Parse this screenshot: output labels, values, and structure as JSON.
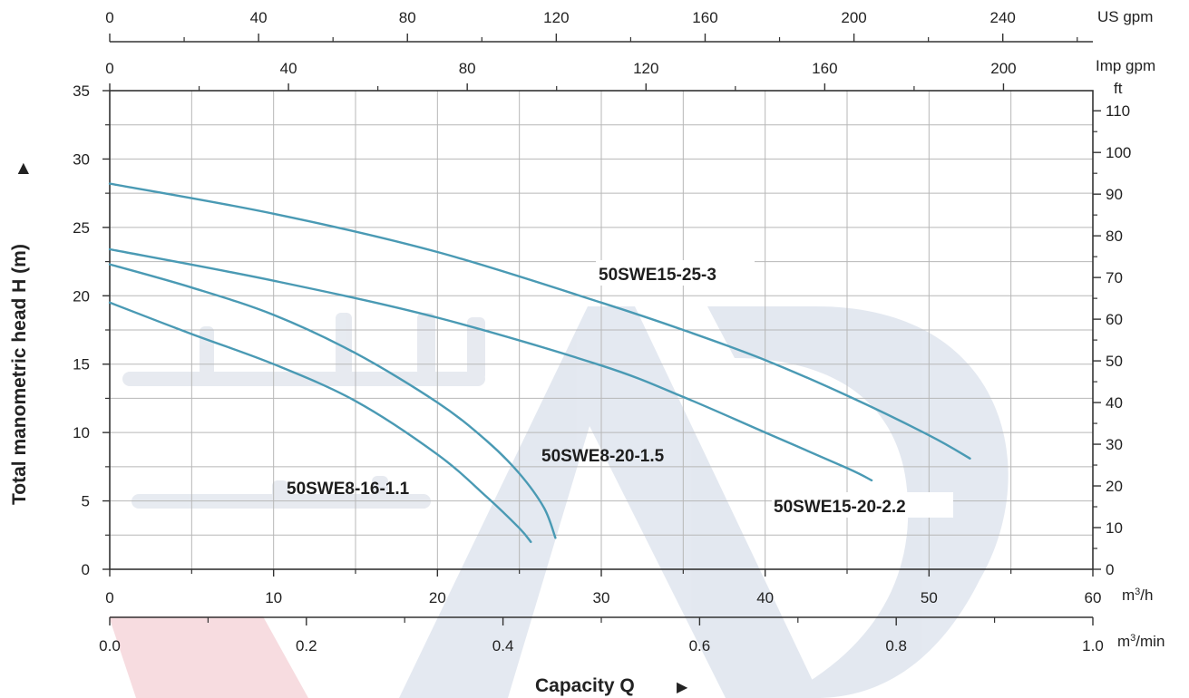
{
  "chart_data": {
    "type": "line",
    "y_axis_title": "Total manometric head H (m)",
    "x_axis_title": "Capacity Q",
    "axes": {
      "x_m3h": {
        "unit": "m³/h",
        "range": [
          0,
          60
        ],
        "ticks": [
          "0",
          "10",
          "20",
          "30",
          "40",
          "50",
          "60"
        ]
      },
      "x_m3min": {
        "unit": "m³/min",
        "range": [
          0,
          1.0
        ],
        "ticks": [
          "0.0",
          "0.2",
          "0.4",
          "0.6",
          "0.8",
          "1.0"
        ]
      },
      "x_us_gpm": {
        "unit": "US gpm",
        "range": [
          0,
          264.2
        ],
        "ticks": [
          "0",
          "40",
          "80",
          "120",
          "160",
          "200",
          "240"
        ]
      },
      "x_imp_gpm": {
        "unit": "Imp gpm",
        "range": [
          0,
          220
        ],
        "ticks": [
          "0",
          "40",
          "80",
          "120",
          "160",
          "200"
        ]
      },
      "y_m": {
        "unit": "",
        "range": [
          0,
          35
        ],
        "ticks": [
          "0",
          "5",
          "10",
          "15",
          "20",
          "25",
          "30",
          "35"
        ]
      },
      "y_ft": {
        "unit": "ft",
        "range": [
          0,
          114.8
        ],
        "ticks": [
          "0",
          "10",
          "20",
          "30",
          "40",
          "50",
          "60",
          "70",
          "80",
          "90",
          "100",
          "110"
        ]
      }
    },
    "grid": true,
    "series": [
      {
        "name": "50SWE15-25-3",
        "x": [
          0,
          10,
          20,
          30,
          35,
          40,
          45,
          50,
          52.5
        ],
        "y": [
          28.2,
          26.0,
          23.2,
          19.5,
          17.5,
          15.3,
          12.7,
          9.8,
          8.1
        ]
      },
      {
        "name": "50SWE15-20-2.2",
        "x": [
          0,
          10,
          20,
          30,
          35,
          40,
          45,
          46.5
        ],
        "y": [
          23.4,
          21.1,
          18.4,
          14.9,
          12.6,
          10.0,
          7.4,
          6.5
        ]
      },
      {
        "name": "50SWE8-20-1.5",
        "x": [
          0,
          5,
          10,
          15,
          20,
          23,
          25,
          26.5,
          27.2
        ],
        "y": [
          22.3,
          20.6,
          18.6,
          15.8,
          12.2,
          9.4,
          7.0,
          4.5,
          2.3
        ]
      },
      {
        "name": "50SWE8-16-1.1",
        "x": [
          0,
          5,
          10,
          15,
          20,
          23,
          25,
          25.7
        ],
        "y": [
          19.5,
          17.2,
          15.0,
          12.3,
          8.4,
          5.3,
          3.0,
          2.0
        ]
      }
    ],
    "colors": {
      "curve": "#4a9ab4",
      "grid": "#b7b7b7",
      "axis": "#333333"
    }
  }
}
